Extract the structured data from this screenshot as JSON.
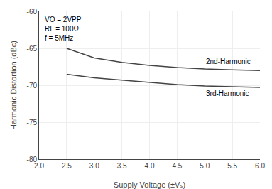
{
  "chart_data": {
    "type": "line",
    "xlabel": "Supply Voltage (±Vₛ)",
    "ylabel": "Harmonic Distortion (dBc)",
    "x": [
      2.5,
      3.0,
      3.5,
      4.0,
      4.5,
      5.0,
      5.5,
      6.0
    ],
    "series": [
      {
        "name": "2nd-Harmonic",
        "color": "#444444",
        "values": [
          -65.0,
          -66.3,
          -66.9,
          -67.3,
          -67.6,
          -67.8,
          -67.9,
          -68.0
        ]
      },
      {
        "name": "3rd-Harmonic",
        "color": "#444444",
        "values": [
          -68.5,
          -69.0,
          -69.3,
          -69.6,
          -69.9,
          -70.1,
          -70.2,
          -70.3
        ]
      }
    ],
    "xlim": [
      2.0,
      6.0
    ],
    "ylim": [
      -80,
      -60
    ],
    "xticks": [
      {
        "value": 2.0,
        "label": "2.0"
      },
      2.5,
      {
        "value": 3.0,
        "label": "3.0"
      },
      3.5,
      {
        "value": 4.0,
        "label": "4.0"
      },
      4.5,
      {
        "value": 5.0,
        "label": "5.0"
      },
      5.5,
      {
        "value": 6.0,
        "label": "6.0"
      }
    ],
    "yticks": [
      -80,
      -75,
      -70,
      -65,
      -60
    ],
    "grid": true,
    "annotations": [
      "VO = 2VPP",
      "RL = 100Ω",
      "f = 5MHz"
    ]
  }
}
